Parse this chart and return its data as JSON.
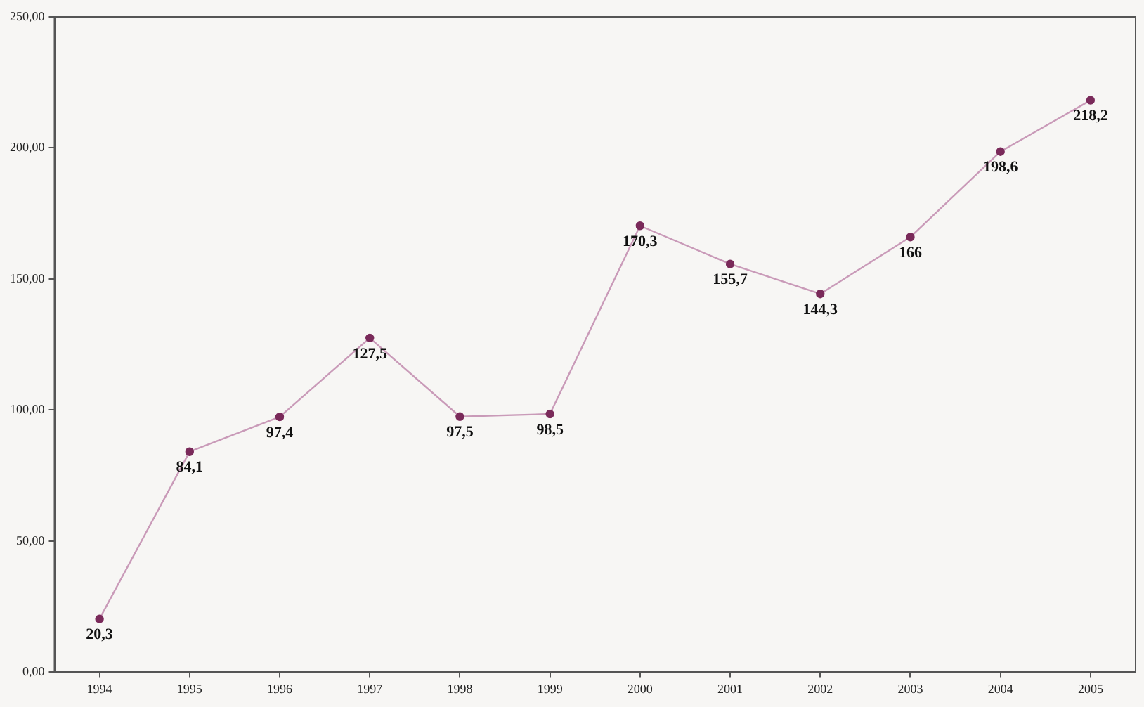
{
  "chart_data": {
    "type": "line",
    "categories": [
      "1994",
      "1995",
      "1996",
      "1997",
      "1998",
      "1999",
      "2000",
      "2001",
      "2002",
      "2003",
      "2004",
      "2005"
    ],
    "series": [
      {
        "color": "#c99ab8",
        "values": [
          20.3,
          84.1,
          97.4,
          127.5,
          97.5,
          98.5,
          170.3,
          155.7,
          144.3,
          166,
          198.6,
          218.2
        ],
        "value_labels": [
          "20,3",
          "84,1",
          "97,4",
          "127,5",
          "97,5",
          "98,5",
          "170,3",
          "155,7",
          "144,3",
          "166",
          "198,6",
          "218,2"
        ]
      }
    ],
    "ylim": [
      0,
      250
    ],
    "yticks": [
      {
        "value": 0,
        "label": "0,00"
      },
      {
        "value": 50,
        "label": "50,00"
      },
      {
        "value": 100,
        "label": "100,00"
      },
      {
        "value": 150,
        "label": "150,00"
      },
      {
        "value": 200,
        "label": "200,00"
      },
      {
        "value": 250,
        "label": "250,00"
      }
    ],
    "grid": false,
    "legend": false,
    "marker": "circle",
    "line_style": "solid"
  }
}
